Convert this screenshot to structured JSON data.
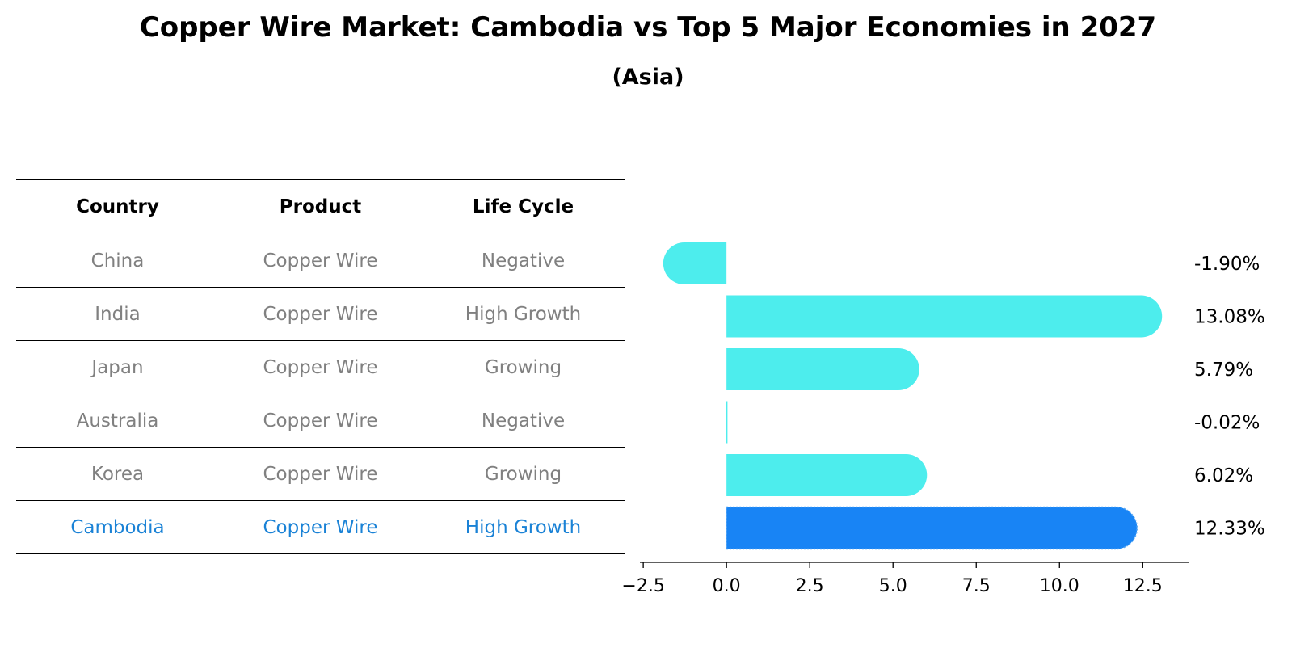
{
  "title": "Copper Wire Market: Cambodia vs Top 5 Major Economies in 2027",
  "subtitle": "(Asia)",
  "table": {
    "headers": [
      "Country",
      "Product",
      "Life Cycle"
    ],
    "rows": [
      [
        "China",
        "Copper Wire",
        "Negative"
      ],
      [
        "India",
        "Copper Wire",
        "High Growth"
      ],
      [
        "Japan",
        "Copper Wire",
        "Growing"
      ],
      [
        "Australia",
        "Copper Wire",
        "Negative"
      ],
      [
        "Korea",
        "Copper Wire",
        "Growing"
      ],
      [
        "Cambodia",
        "Copper Wire",
        "High Growth"
      ]
    ],
    "highlight_row": 5,
    "highlight_color": "#1a82d6",
    "text_color": "#808080"
  },
  "chart_data": {
    "type": "bar",
    "orientation": "horizontal",
    "categories": [
      "China",
      "India",
      "Japan",
      "Australia",
      "Korea",
      "Cambodia"
    ],
    "values": [
      -1.9,
      13.08,
      5.79,
      -0.02,
      6.02,
      12.33
    ],
    "value_labels": [
      "-1.90%",
      "13.08%",
      "5.79%",
      "-0.02%",
      "6.02%",
      "12.33%"
    ],
    "xlim": [
      -2.6,
      13.9
    ],
    "xticks": [
      -2.5,
      0.0,
      2.5,
      5.0,
      7.5,
      10.0,
      12.5
    ],
    "xtick_labels": [
      "−2.5",
      "0.0",
      "2.5",
      "5.0",
      "7.5",
      "10.0",
      "12.5"
    ],
    "bar_color": "#4deded",
    "highlight_color": "#1884f5",
    "highlight_index": 5,
    "grid": false
  }
}
